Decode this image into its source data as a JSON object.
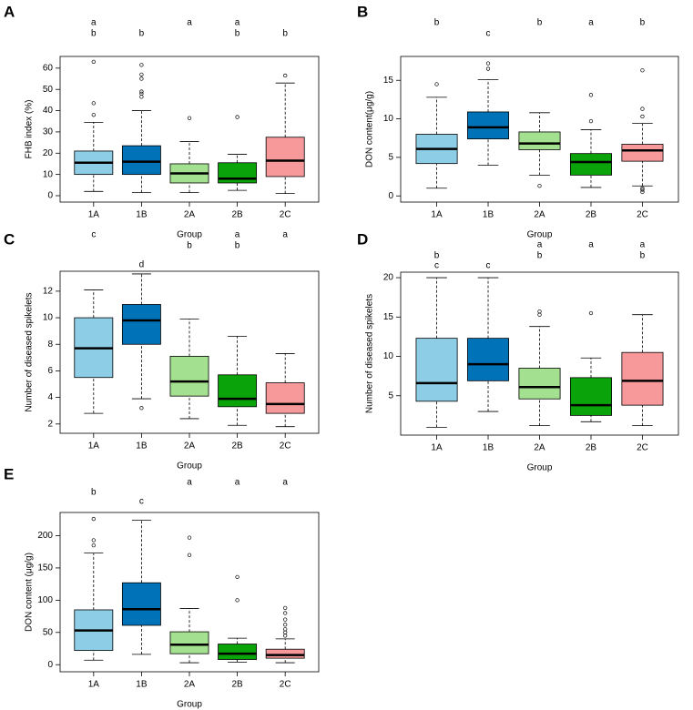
{
  "chart_data": [
    {
      "type": "box",
      "panel_label": "A",
      "y_label": "FHB index (%)",
      "x_label": "Group",
      "categories": [
        "1A",
        "1B",
        "2A",
        "2B",
        "2C"
      ],
      "colors": [
        "#8ecde6",
        "#0072b8",
        "#a3e08f",
        "#0aa30a",
        "#f7999b"
      ],
      "ylim": [
        -3,
        65.5
      ],
      "yticks": [
        0,
        10,
        20,
        30,
        40,
        50,
        60
      ],
      "boxes": [
        {
          "low": 2,
          "q1": 10,
          "median": 15.5,
          "q3": 21,
          "high": 34.5,
          "outliers": [
            38,
            43.5,
            63
          ]
        },
        {
          "low": 1.5,
          "q1": 10,
          "median": 16,
          "q3": 23.5,
          "high": 40,
          "outliers": [
            46.5,
            48,
            49,
            55,
            57,
            61.5
          ]
        },
        {
          "low": 1.5,
          "q1": 6,
          "median": 10.5,
          "q3": 15,
          "high": 25.5,
          "outliers": [
            36.5
          ]
        },
        {
          "low": 2.5,
          "q1": 6,
          "median": 8,
          "q3": 15.5,
          "high": 19.5,
          "outliers": [
            37
          ]
        },
        {
          "low": 1,
          "q1": 9,
          "median": 16.5,
          "q3": 27.5,
          "high": 53,
          "outliers": [
            56.5
          ]
        }
      ],
      "letters": [
        [
          "a",
          null,
          "a",
          "a",
          null
        ],
        [
          "b",
          "b",
          null,
          "b",
          "b"
        ]
      ]
    },
    {
      "type": "box",
      "panel_label": "B",
      "y_label": "DON content(μg/g)",
      "x_label": "Group",
      "categories": [
        "1A",
        "1B",
        "2A",
        "2B",
        "2C"
      ],
      "colors": [
        "#8ecde6",
        "#0072b8",
        "#a3e08f",
        "#0aa30a",
        "#f7999b"
      ],
      "ylim": [
        -0.8,
        18.1
      ],
      "yticks": [
        0,
        5,
        10,
        15
      ],
      "boxes": [
        {
          "low": 1,
          "q1": 4.2,
          "median": 6.1,
          "q3": 8,
          "high": 12.8,
          "outliers": [
            14.5
          ]
        },
        {
          "low": 4,
          "q1": 7.4,
          "median": 8.9,
          "q3": 10.9,
          "high": 15.1,
          "outliers": [
            16.5,
            17.2
          ]
        },
        {
          "low": 2.7,
          "q1": 6,
          "median": 6.8,
          "q3": 8.3,
          "high": 10.8,
          "outliers": [
            1.3
          ]
        },
        {
          "low": 1.1,
          "q1": 2.7,
          "median": 4.4,
          "q3": 5.5,
          "high": 8.6,
          "outliers": [
            9.7,
            13.1
          ]
        },
        {
          "low": 1.3,
          "q1": 4.5,
          "median": 5.9,
          "q3": 6.7,
          "high": 9.4,
          "outliers": [
            10.3,
            11.3,
            16.3,
            1,
            0.8,
            0.5
          ]
        }
      ],
      "letters": [
        [
          "b",
          null,
          "b",
          "a",
          "b"
        ],
        [
          null,
          "c",
          null,
          null,
          null
        ]
      ]
    },
    {
      "type": "box",
      "panel_label": "C",
      "y_label": "Number of diseased spikelets",
      "x_label": "Group",
      "categories": [
        "1A",
        "1B",
        "2A",
        "2B",
        "2C"
      ],
      "colors": [
        "#8ecde6",
        "#0072b8",
        "#a3e08f",
        "#0aa30a",
        "#f7999b"
      ],
      "ylim": [
        1.3,
        13.5
      ],
      "yticks": [
        2,
        4,
        6,
        8,
        10,
        12
      ],
      "boxes": [
        {
          "low": 2.8,
          "q1": 5.5,
          "median": 7.7,
          "q3": 10,
          "high": 12.1,
          "outliers": []
        },
        {
          "low": 3.9,
          "q1": 8,
          "median": 9.8,
          "q3": 11,
          "high": 13.3,
          "outliers": [
            3.2
          ]
        },
        {
          "low": 2.4,
          "q1": 4.1,
          "median": 5.2,
          "q3": 7.1,
          "high": 9.9,
          "outliers": []
        },
        {
          "low": 1.9,
          "q1": 3.3,
          "median": 3.9,
          "q3": 5.7,
          "high": 8.6,
          "outliers": []
        },
        {
          "low": 1.8,
          "q1": 2.8,
          "median": 3.5,
          "q3": 5.1,
          "high": 7.3,
          "outliers": []
        }
      ],
      "letters": [
        [
          "c",
          null,
          null,
          "a",
          "a"
        ],
        [
          null,
          null,
          "b",
          "b",
          null
        ],
        [
          null,
          "d",
          null,
          null,
          null
        ]
      ]
    },
    {
      "type": "box",
      "panel_label": "D",
      "y_label": "Number of diseased spikelets",
      "x_label": "Group",
      "categories": [
        "1A",
        "1B",
        "2A",
        "2B",
        "2C"
      ],
      "colors": [
        "#8ecde6",
        "#0072b8",
        "#a3e08f",
        "#0aa30a",
        "#f7999b"
      ],
      "ylim": [
        0,
        20.7
      ],
      "yticks": [
        5,
        10,
        15,
        20
      ],
      "boxes": [
        {
          "low": 1,
          "q1": 4.3,
          "median": 6.6,
          "q3": 12.3,
          "high": 20,
          "outliers": []
        },
        {
          "low": 3,
          "q1": 6.9,
          "median": 9,
          "q3": 12.3,
          "high": 20,
          "outliers": []
        },
        {
          "low": 1.2,
          "q1": 4.6,
          "median": 6.1,
          "q3": 8.5,
          "high": 13.8,
          "outliers": [
            15.3,
            15.7
          ]
        },
        {
          "low": 1.7,
          "q1": 2.5,
          "median": 3.8,
          "q3": 7.3,
          "high": 9.8,
          "outliers": [
            15.5
          ]
        },
        {
          "low": 1.2,
          "q1": 3.8,
          "median": 6.9,
          "q3": 10.5,
          "high": 15.3,
          "outliers": []
        }
      ],
      "letters": [
        [
          null,
          null,
          "a",
          "a",
          "a"
        ],
        [
          "b",
          null,
          "b",
          null,
          "b"
        ],
        [
          "c",
          "c",
          null,
          null,
          null
        ]
      ]
    },
    {
      "type": "box",
      "panel_label": "E",
      "y_label": "DON content (μg/g)",
      "x_label": "Group",
      "categories": [
        "1A",
        "1B",
        "2A",
        "2B",
        "2C"
      ],
      "colors": [
        "#8ecde6",
        "#0072b8",
        "#a3e08f",
        "#0aa30a",
        "#f7999b"
      ],
      "ylim": [
        -11,
        236
      ],
      "yticks": [
        0,
        50,
        100,
        150,
        200
      ],
      "boxes": [
        {
          "low": 7,
          "q1": 22,
          "median": 53,
          "q3": 85,
          "high": 173,
          "outliers": [
            185,
            193,
            226
          ]
        },
        {
          "low": 16,
          "q1": 61,
          "median": 86,
          "q3": 127,
          "high": 224,
          "outliers": []
        },
        {
          "low": 3,
          "q1": 17,
          "median": 31,
          "q3": 51,
          "high": 87,
          "outliers": [
            170,
            197
          ]
        },
        {
          "low": 4,
          "q1": 8,
          "median": 17,
          "q3": 32,
          "high": 41,
          "outliers": [
            100,
            136
          ]
        },
        {
          "low": 3,
          "q1": 10,
          "median": 15,
          "q3": 24,
          "high": 40,
          "outliers": [
            45,
            50,
            55,
            62,
            70,
            80,
            88
          ]
        }
      ],
      "letters": [
        [
          null,
          null,
          "a",
          "a",
          "a"
        ],
        [
          "b",
          null,
          null,
          null,
          null
        ],
        [
          null,
          "c",
          null,
          null,
          null
        ]
      ]
    }
  ]
}
